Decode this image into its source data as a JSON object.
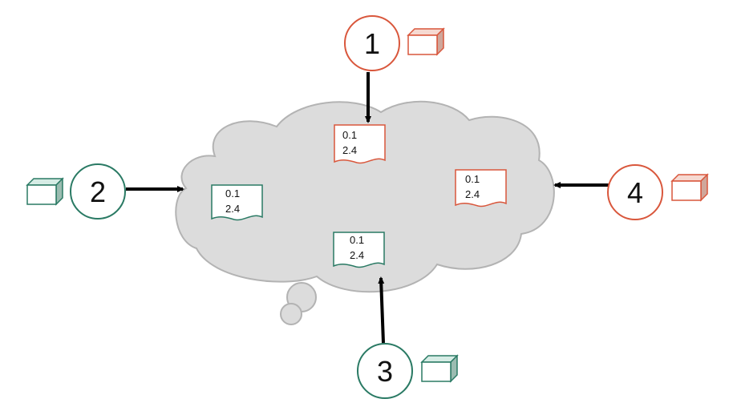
{
  "colors": {
    "orange": "#d9573c",
    "teal": "#2a7a64",
    "cloud_fill": "#dcdcdc",
    "cloud_stroke": "#b3b3b3",
    "arrow": "#000000"
  },
  "nodes": [
    {
      "id": "1",
      "label": "1",
      "color": "orange"
    },
    {
      "id": "2",
      "label": "2",
      "color": "teal"
    },
    {
      "id": "3",
      "label": "3",
      "color": "teal"
    },
    {
      "id": "4",
      "label": "4",
      "color": "orange"
    }
  ],
  "documents": [
    {
      "from": "1",
      "color": "orange",
      "lines": [
        "0.1",
        "2.4"
      ]
    },
    {
      "from": "2",
      "color": "teal",
      "lines": [
        "0.1",
        "2.4"
      ]
    },
    {
      "from": "3",
      "color": "teal",
      "lines": [
        "0.1",
        "2.4"
      ]
    },
    {
      "from": "4",
      "color": "orange",
      "lines": [
        "0.1",
        "2.4"
      ]
    }
  ],
  "boxes": [
    {
      "node": "1",
      "color": "orange"
    },
    {
      "node": "2",
      "color": "teal"
    },
    {
      "node": "3",
      "color": "teal"
    },
    {
      "node": "4",
      "color": "orange"
    }
  ]
}
